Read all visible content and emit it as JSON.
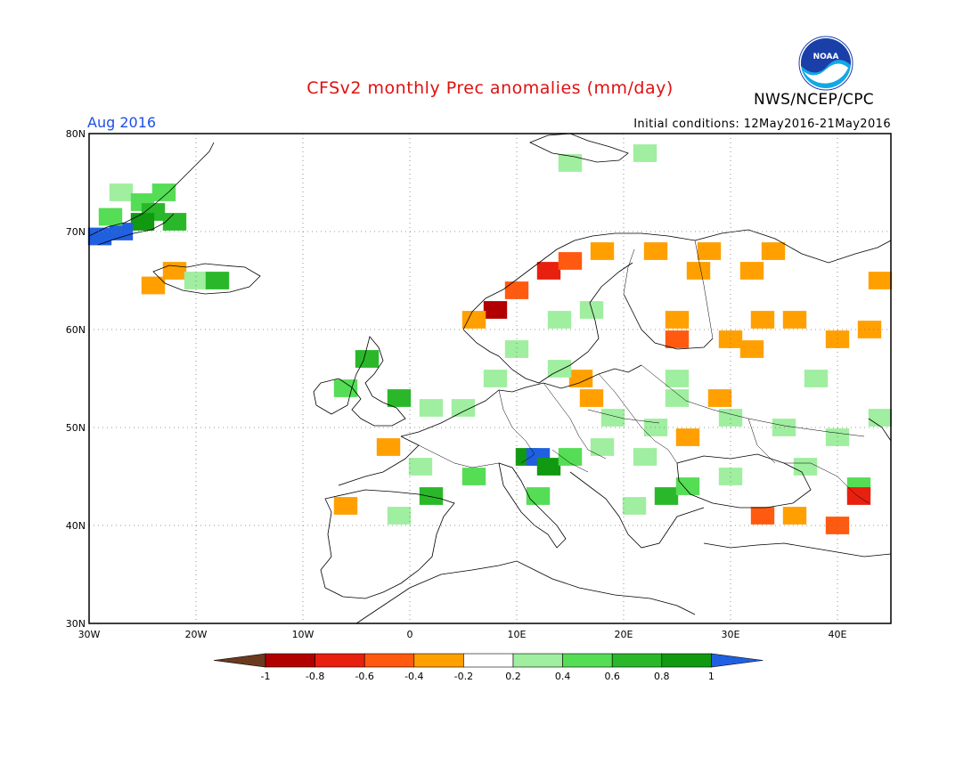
{
  "title": "CFSv2 monthly Prec anomalies (mm/day)",
  "agency": "NWS/NCEP/CPC",
  "logo_text": "NOAA",
  "month": "Aug 2016",
  "initial_conditions": "Initial conditions: 12May2016-21May2016",
  "map": {
    "lon_range": [
      -30,
      45
    ],
    "lat_range": [
      30,
      80
    ],
    "lon_ticks": [
      "30W",
      "20W",
      "10W",
      "0",
      "10E",
      "20E",
      "30E",
      "40E"
    ],
    "lat_ticks": [
      "80N",
      "70N",
      "60N",
      "50N",
      "40N",
      "30N"
    ],
    "grid": "dotted"
  },
  "colorbar": {
    "labels": [
      "-1",
      "-0.8",
      "-0.6",
      "-0.4",
      "-0.2",
      "0.2",
      "0.4",
      "0.6",
      "0.8",
      "1"
    ],
    "colors": [
      "#6b3a1e",
      "#b20000",
      "#e82010",
      "#ff5a10",
      "#ffa000",
      "#ffffff",
      "#a0eea0",
      "#55dd55",
      "#2ab82a",
      "#119911",
      "#2060e0"
    ]
  },
  "anomaly_cells": [
    {
      "lon": -27,
      "lat": 74,
      "level": 0.3
    },
    {
      "lon": -25,
      "lat": 73,
      "level": 0.5
    },
    {
      "lon": -24,
      "lat": 72,
      "level": 0.7
    },
    {
      "lon": -25,
      "lat": 71,
      "level": 0.9
    },
    {
      "lon": -27,
      "lat": 70,
      "level": 1.0
    },
    {
      "lon": -29,
      "lat": 69.5,
      "level": 1.0
    },
    {
      "lon": -22,
      "lat": 71,
      "level": 0.6
    },
    {
      "lon": -28,
      "lat": 71.5,
      "level": 0.4
    },
    {
      "lon": -23,
      "lat": 74,
      "level": 0.5
    },
    {
      "lon": -22,
      "lat": 66,
      "level": -0.3
    },
    {
      "lon": -20,
      "lat": 65,
      "level": 0.3
    },
    {
      "lon": -18,
      "lat": 65,
      "level": 0.6
    },
    {
      "lon": -24,
      "lat": 64.5,
      "level": -0.3
    },
    {
      "lon": -4,
      "lat": 57,
      "level": 0.7
    },
    {
      "lon": -6,
      "lat": 54,
      "level": 0.5
    },
    {
      "lon": -1,
      "lat": 53,
      "level": 0.6
    },
    {
      "lon": 2,
      "lat": 52,
      "level": 0.3
    },
    {
      "lon": 5,
      "lat": 52,
      "level": 0.3
    },
    {
      "lon": -2,
      "lat": 48,
      "level": -0.3
    },
    {
      "lon": 1,
      "lat": 46,
      "level": 0.3
    },
    {
      "lon": 2,
      "lat": 43,
      "level": 0.7
    },
    {
      "lon": -1,
      "lat": 41,
      "level": 0.3
    },
    {
      "lon": -6,
      "lat": 42,
      "level": -0.3
    },
    {
      "lon": 6,
      "lat": 45,
      "level": 0.5
    },
    {
      "lon": 11,
      "lat": 47,
      "level": 0.8
    },
    {
      "lon": 12,
      "lat": 47,
      "level": 1.0
    },
    {
      "lon": 13,
      "lat": 46,
      "level": 0.9
    },
    {
      "lon": 15,
      "lat": 47,
      "level": 0.5
    },
    {
      "lon": 12,
      "lat": 43,
      "level": 0.5
    },
    {
      "lon": 18,
      "lat": 48,
      "level": 0.3
    },
    {
      "lon": 22,
      "lat": 47,
      "level": 0.3
    },
    {
      "lon": 24,
      "lat": 43,
      "level": 0.7
    },
    {
      "lon": 26,
      "lat": 44,
      "level": 0.5
    },
    {
      "lon": 21,
      "lat": 42,
      "level": 0.3
    },
    {
      "lon": 23,
      "lat": 50,
      "level": 0.3
    },
    {
      "lon": 19,
      "lat": 51,
      "level": 0.3
    },
    {
      "lon": 25,
      "lat": 53,
      "level": 0.3
    },
    {
      "lon": 30,
      "lat": 51,
      "level": 0.3
    },
    {
      "lon": 35,
      "lat": 50,
      "level": 0.3
    },
    {
      "lon": 40,
      "lat": 49,
      "level": 0.3
    },
    {
      "lon": 37,
      "lat": 46,
      "level": 0.3
    },
    {
      "lon": 42,
      "lat": 44,
      "level": 0.4
    },
    {
      "lon": 33,
      "lat": 41,
      "level": -0.6
    },
    {
      "lon": 36,
      "lat": 41,
      "level": -0.4
    },
    {
      "lon": 40,
      "lat": 40,
      "level": -0.6
    },
    {
      "lon": 42,
      "lat": 43,
      "level": -0.7
    },
    {
      "lon": 17,
      "lat": 53,
      "level": -0.3
    },
    {
      "lon": 16,
      "lat": 55,
      "level": -0.3
    },
    {
      "lon": 29,
      "lat": 53,
      "level": -0.3
    },
    {
      "lon": 26,
      "lat": 49,
      "level": -0.3
    },
    {
      "lon": 13,
      "lat": 66,
      "level": -0.8
    },
    {
      "lon": 15,
      "lat": 67,
      "level": -0.6
    },
    {
      "lon": 8,
      "lat": 62,
      "level": -0.9
    },
    {
      "lon": 10,
      "lat": 64,
      "level": -0.6
    },
    {
      "lon": 6,
      "lat": 61,
      "level": -0.4
    },
    {
      "lon": 18,
      "lat": 68,
      "level": -0.3
    },
    {
      "lon": 23,
      "lat": 68,
      "level": -0.3
    },
    {
      "lon": 28,
      "lat": 68,
      "level": -0.3
    },
    {
      "lon": 34,
      "lat": 68,
      "level": -0.3
    },
    {
      "lon": 27,
      "lat": 66,
      "level": -0.3
    },
    {
      "lon": 32,
      "lat": 66,
      "level": -0.3
    },
    {
      "lon": 36,
      "lat": 61,
      "level": -0.3
    },
    {
      "lon": 33,
      "lat": 61,
      "level": -0.3
    },
    {
      "lon": 30,
      "lat": 59,
      "level": -0.3
    },
    {
      "lon": 32,
      "lat": 58,
      "level": -0.3
    },
    {
      "lon": 40,
      "lat": 59,
      "level": -0.3
    },
    {
      "lon": 43,
      "lat": 60,
      "level": -0.3
    },
    {
      "lon": 25,
      "lat": 61,
      "level": -0.3
    },
    {
      "lon": 25,
      "lat": 59,
      "level": -0.6
    },
    {
      "lon": 14,
      "lat": 61,
      "level": 0.3
    },
    {
      "lon": 10,
      "lat": 58,
      "level": 0.3
    },
    {
      "lon": 14,
      "lat": 56,
      "level": 0.3
    },
    {
      "lon": 17,
      "lat": 62,
      "level": 0.3
    },
    {
      "lon": 8,
      "lat": 55,
      "level": 0.3
    },
    {
      "lon": 44,
      "lat": 65,
      "level": -0.3
    },
    {
      "lon": 15,
      "lat": 77,
      "level": 0.3
    },
    {
      "lon": 22,
      "lat": 78,
      "level": 0.3
    },
    {
      "lon": 38,
      "lat": 55,
      "level": 0.3
    },
    {
      "lon": 44,
      "lat": 51,
      "level": 0.3
    },
    {
      "lon": 25,
      "lat": 55,
      "level": 0.3
    },
    {
      "lon": 30,
      "lat": 45,
      "level": 0.3
    }
  ]
}
